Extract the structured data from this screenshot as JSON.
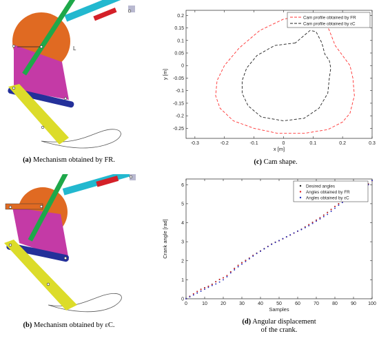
{
  "figures": {
    "a": {
      "label": "(a)",
      "text": "Mechanism obtained by FR."
    },
    "b": {
      "label": "(b)",
      "text": "Mechanism obtained by εC."
    },
    "c": {
      "label": "(c)",
      "text": "Cam shape."
    },
    "d": {
      "label": "(d)",
      "text_line1": "Angular displacement",
      "text_line2": "of the crank."
    }
  },
  "mechanism": {
    "colors": {
      "cam": "#e06a22",
      "link_cyan": "#22b8cf",
      "link_green": "#1ea84a",
      "link_magenta": "#c43aa6",
      "link_blue": "#24309a",
      "link_yellow": "#dcdc2a",
      "slider_red": "#d42028",
      "slider_gray": "#b9b9d0"
    },
    "mark_label": "L"
  },
  "chart_data": [
    {
      "type": "line",
      "id": "cam-shape",
      "title": "",
      "xlabel": "x [m]",
      "ylabel": "y [m]",
      "xlim": [
        -0.33,
        0.3
      ],
      "ylim": [
        -0.29,
        0.22
      ],
      "xticks": [
        -0.3,
        -0.2,
        -0.1,
        0,
        0.1,
        0.2,
        0.3
      ],
      "yticks": [
        -0.25,
        -0.2,
        -0.15,
        -0.1,
        -0.05,
        0,
        0.05,
        0.1,
        0.15,
        0.2
      ],
      "xtick_labels": [
        "-0.3",
        "-0.2",
        "-0.1",
        "0",
        "0.1",
        "0.2",
        "0.3"
      ],
      "ytick_labels": [
        "-0.25",
        "-0.2",
        "-0.15",
        "-0.1",
        "-0.05",
        "0",
        "0.05",
        "0.1",
        "0.15",
        "0.2"
      ],
      "legend_position": "top-right",
      "series": [
        {
          "name": "Cam profile obtained by FR",
          "color": "#ff3030",
          "dash": "dashed",
          "x": [
            0.075,
            0.0,
            -0.08,
            -0.15,
            -0.2,
            -0.225,
            -0.23,
            -0.215,
            -0.17,
            -0.1,
            -0.02,
            0.07,
            0.15,
            0.2,
            0.225,
            0.24,
            0.235,
            0.225,
            0.2,
            0.175,
            0.155,
            0.135,
            0.125,
            0.115,
            0.1,
            0.075
          ],
          "y": [
            0.2,
            0.185,
            0.14,
            0.07,
            0.0,
            -0.06,
            -0.12,
            -0.17,
            -0.22,
            -0.25,
            -0.27,
            -0.27,
            -0.255,
            -0.225,
            -0.19,
            -0.12,
            -0.05,
            0.0,
            0.04,
            0.08,
            0.14,
            0.19,
            0.21,
            0.21,
            0.205,
            0.2
          ]
        },
        {
          "name": "Cam profile obtained by εC",
          "color": "#202020",
          "dash": "dashed",
          "x": [
            0.04,
            -0.03,
            -0.09,
            -0.125,
            -0.14,
            -0.14,
            -0.12,
            -0.075,
            0.0,
            0.07,
            0.12,
            0.15,
            0.155,
            0.16,
            0.155,
            0.14,
            0.13,
            0.11,
            0.09,
            0.07,
            0.04
          ],
          "y": [
            0.09,
            0.08,
            0.04,
            -0.01,
            -0.06,
            -0.11,
            -0.16,
            -0.205,
            -0.22,
            -0.21,
            -0.17,
            -0.11,
            -0.05,
            -0.01,
            0.02,
            0.045,
            0.09,
            0.135,
            0.14,
            0.12,
            0.09
          ]
        }
      ]
    },
    {
      "type": "scatter",
      "id": "crank-angle",
      "title": "",
      "xlabel": "Samples",
      "ylabel": "Crank angle [rad]",
      "xlim": [
        0,
        100
      ],
      "ylim": [
        0,
        6.3
      ],
      "xticks": [
        0,
        10,
        20,
        30,
        40,
        50,
        60,
        70,
        80,
        90,
        100
      ],
      "yticks": [
        0,
        1,
        2,
        3,
        4,
        5,
        6
      ],
      "xtick_labels": [
        "0",
        "10",
        "20",
        "30",
        "40",
        "50",
        "60",
        "70",
        "80",
        "90",
        "100"
      ],
      "ytick_labels": [
        "0",
        "1",
        "2",
        "3",
        "4",
        "5",
        "6"
      ],
      "legend_position": "top-left",
      "series": [
        {
          "name": "Desired angles",
          "color": "#1a1a1a"
        },
        {
          "name": "Angles obtained by FR",
          "color": "#e02020"
        },
        {
          "name": "Angles obtained by εC",
          "color": "#2030c0"
        }
      ],
      "x": [
        0,
        2,
        4,
        6,
        8,
        10,
        12,
        14,
        16,
        18,
        20,
        22,
        24,
        26,
        28,
        30,
        32,
        34,
        36,
        38,
        40,
        42,
        44,
        46,
        48,
        50,
        52,
        54,
        56,
        58,
        60,
        62,
        64,
        66,
        68,
        70,
        72,
        74,
        76,
        78,
        80,
        82,
        84,
        86,
        88,
        90,
        92,
        94,
        96,
        98,
        100
      ],
      "desired": [
        0.0,
        0.13,
        0.26,
        0.38,
        0.5,
        0.58,
        0.66,
        0.76,
        0.9,
        1.02,
        1.1,
        1.22,
        1.42,
        1.6,
        1.76,
        1.9,
        2.02,
        2.14,
        2.28,
        2.4,
        2.52,
        2.64,
        2.76,
        2.88,
        2.98,
        3.06,
        3.16,
        3.26,
        3.36,
        3.46,
        3.56,
        3.66,
        3.78,
        3.9,
        4.02,
        4.14,
        4.26,
        4.4,
        4.54,
        4.7,
        4.86,
        5.0,
        5.12,
        5.24,
        5.38,
        5.5,
        5.62,
        5.76,
        5.9,
        6.04,
        6.22
      ],
      "fr": [
        0.0,
        0.13,
        0.26,
        0.38,
        0.49,
        0.57,
        0.65,
        0.75,
        0.89,
        1.01,
        1.1,
        1.22,
        1.41,
        1.59,
        1.75,
        1.89,
        2.01,
        2.13,
        2.27,
        2.39,
        2.51,
        2.63,
        2.75,
        2.87,
        2.97,
        3.05,
        3.15,
        3.25,
        3.35,
        3.45,
        3.55,
        3.65,
        3.77,
        3.89,
        4.01,
        4.13,
        4.25,
        4.39,
        4.53,
        4.69,
        4.85,
        4.99,
        5.11,
        5.23,
        5.37,
        5.49,
        5.61,
        5.75,
        5.89,
        6.03,
        6.21
      ],
      "ec": [
        0.0,
        0.1,
        0.2,
        0.3,
        0.4,
        0.5,
        0.6,
        0.7,
        0.78,
        0.88,
        1.0,
        1.16,
        1.36,
        1.52,
        1.68,
        1.82,
        1.96,
        2.1,
        2.24,
        2.38,
        2.5,
        2.62,
        2.74,
        2.86,
        2.96,
        3.06,
        3.16,
        3.26,
        3.36,
        3.46,
        3.56,
        3.64,
        3.74,
        3.84,
        3.96,
        4.08,
        4.2,
        4.32,
        4.44,
        4.6,
        4.76,
        4.92,
        5.06,
        5.2,
        5.34,
        5.46,
        5.58,
        5.72,
        5.86,
        6.0,
        6.22
      ]
    }
  ]
}
